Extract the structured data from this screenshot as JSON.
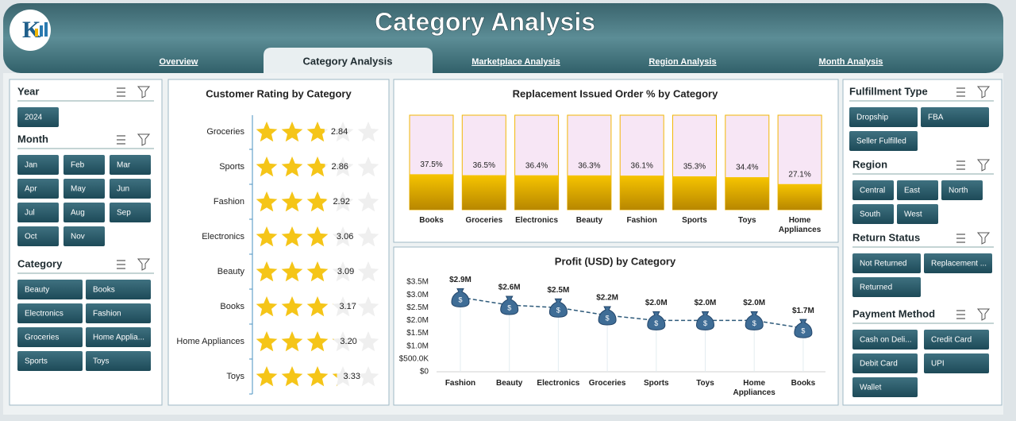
{
  "header": {
    "title": "Category Analysis",
    "tabs": [
      "Overview",
      "Category Analysis",
      "Marketplace Analysis",
      "Region Analysis",
      "Month Analysis"
    ],
    "active_tab": 1
  },
  "slicers": [
    {
      "title": "Year",
      "items": [
        "2024"
      ]
    },
    {
      "title": "Month",
      "items": [
        "Jan",
        "Feb",
        "Mar",
        "Apr",
        "May",
        "Jun",
        "Jul",
        "Aug",
        "Sep",
        "Oct",
        "Nov"
      ]
    },
    {
      "title": "Category",
      "items": [
        "Beauty",
        "Books",
        "Electronics",
        "Fashion",
        "Groceries",
        "Home Applia...",
        "Sports",
        "Toys"
      ]
    },
    {
      "title": "Fulfillment Type",
      "items": [
        "Dropship",
        "FBA",
        "Seller Fulfilled"
      ]
    },
    {
      "title": "Region",
      "items": [
        "Central",
        "East",
        "North",
        "South",
        "West"
      ]
    },
    {
      "title": "Return Status",
      "items": [
        "Not Returned",
        "Replacement ...",
        "Returned"
      ]
    },
    {
      "title": "Payment Method",
      "items": [
        "Cash on Deli...",
        "Credit Card",
        "Debit Card",
        "UPI",
        "Wallet"
      ]
    }
  ],
  "chart_data": [
    {
      "type": "rating",
      "title": "Customer Rating by Category",
      "categories": [
        "Groceries",
        "Sports",
        "Fashion",
        "Electronics",
        "Beauty",
        "Books",
        "Home Appliances",
        "Toys"
      ],
      "values": [
        2.84,
        2.86,
        2.92,
        3.06,
        3.09,
        3.17,
        3.2,
        3.33
      ],
      "value_labels": [
        "2.84",
        "2.86",
        "2.92",
        "3.06",
        "3.09",
        "3.17",
        "3.20",
        "3.33"
      ],
      "xlim": [
        0,
        5
      ],
      "color": "#f5c518"
    },
    {
      "type": "bar",
      "title": "Replacement Issued Order % by Category",
      "categories": [
        "Books",
        "Groceries",
        "Electronics",
        "Beauty",
        "Fashion",
        "Sports",
        "Toys",
        "Home Appliances"
      ],
      "values": [
        37.5,
        36.5,
        36.4,
        36.3,
        36.1,
        35.3,
        34.4,
        27.1
      ],
      "value_labels": [
        "37.5%",
        "36.5%",
        "36.4%",
        "36.3%",
        "36.1%",
        "35.3%",
        "34.4%",
        "27.1%"
      ],
      "ylim": [
        0,
        100
      ],
      "color": "#f2b705"
    },
    {
      "type": "line",
      "title": "Profit (USD) by Category",
      "categories": [
        "Fashion",
        "Beauty",
        "Electronics",
        "Groceries",
        "Sports",
        "Toys",
        "Home Appliances",
        "Books"
      ],
      "values": [
        2900000,
        2600000,
        2500000,
        2200000,
        2000000,
        2000000,
        2000000,
        1700000
      ],
      "value_labels": [
        "$2.9M",
        "$2.6M",
        "$2.5M",
        "$2.2M",
        "$2.0M",
        "$2.0M",
        "$2.0M",
        "$1.7M"
      ],
      "ylim": [
        0,
        3500000
      ],
      "yticks": [
        {
          "value": 0,
          "label": "$0"
        },
        {
          "value": 500000,
          "label": "$500.0K"
        },
        {
          "value": 1000000,
          "label": "$1.0M"
        },
        {
          "value": 1500000,
          "label": "$1.5M"
        },
        {
          "value": 2000000,
          "label": "$2.0M"
        },
        {
          "value": 2500000,
          "label": "$2.5M"
        },
        {
          "value": 3000000,
          "label": "$3.0M"
        },
        {
          "value": 3500000,
          "label": "$3.5M"
        }
      ],
      "color": "#2e5a7a"
    }
  ]
}
